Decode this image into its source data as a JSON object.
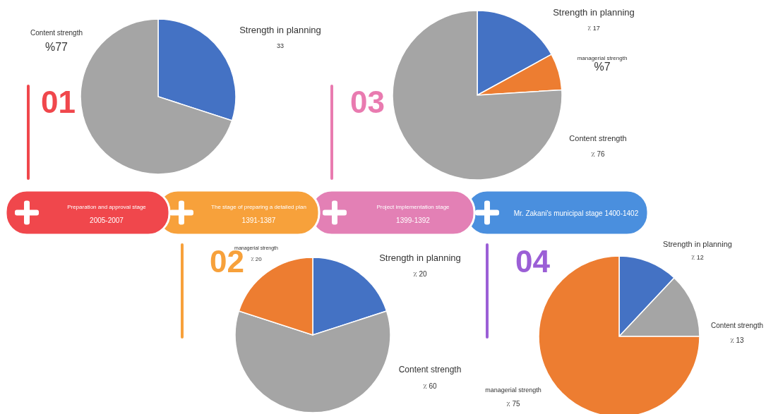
{
  "chart_data": [
    {
      "type": "pie",
      "title": "01",
      "annotations": [
        "Preparation and approval stage",
        "2005-2007"
      ],
      "categories": [
        "Strength in planning",
        "Content strength"
      ],
      "values": [
        33,
        77
      ],
      "colors": [
        "#4472c4",
        "#a5a5a5"
      ],
      "value_labels": [
        "33",
        "%77"
      ]
    },
    {
      "type": "pie",
      "title": "02",
      "annotations": [
        "The stage of preparing a detailed plan",
        "1391-1387"
      ],
      "categories": [
        "Strength in planning",
        "Content strength",
        "managerial strength"
      ],
      "values": [
        20,
        60,
        20
      ],
      "colors": [
        "#4472c4",
        "#a5a5a5",
        "#ed7d31"
      ],
      "value_labels": [
        "٪ 20",
        "٪ 60",
        "٪ 20"
      ]
    },
    {
      "type": "pie",
      "title": "03",
      "annotations": [
        "Project implementation stage",
        "1399-1392"
      ],
      "categories": [
        "Strength in planning",
        "managerial strength",
        "Content strength"
      ],
      "values": [
        17,
        7,
        76
      ],
      "colors": [
        "#4472c4",
        "#ed7d31",
        "#a5a5a5"
      ],
      "value_labels": [
        "٪ 17",
        "%7",
        "٪ 76"
      ]
    },
    {
      "type": "pie",
      "title": "04",
      "annotations": [
        "Mr. Zakani's municipal stage 1400-1402"
      ],
      "categories": [
        "Strength in planning",
        "Content strength",
        "managerial strength"
      ],
      "values": [
        12,
        13,
        75
      ],
      "colors": [
        "#4472c4",
        "#a5a5a5",
        "#ed7d31"
      ],
      "value_labels": [
        "٪ 12",
        "٪ 13",
        "٪ 75"
      ]
    }
  ]
}
